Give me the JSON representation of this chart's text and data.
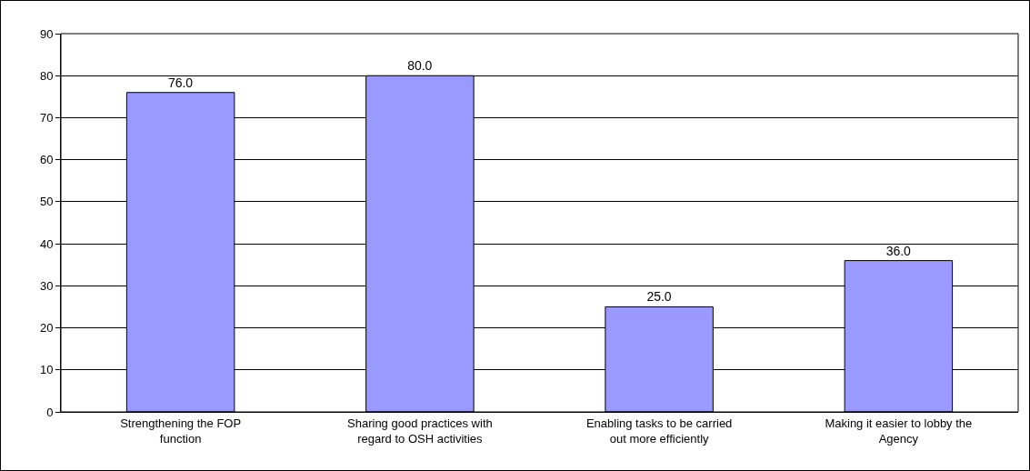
{
  "chart_data": {
    "type": "bar",
    "categories": [
      "Strengthening the FOP function",
      "Sharing good practices with regard to OSH activities",
      "Enabling tasks to be carried out more efficiently",
      "Making it easier to lobby the Agency"
    ],
    "values": [
      76,
      80,
      25,
      36
    ],
    "value_labels": [
      "76.0",
      "80.0",
      "25.0",
      "36.0"
    ],
    "color": "#9999ff",
    "ylim": [
      0,
      90
    ],
    "yticks": [
      0,
      10,
      20,
      30,
      40,
      50,
      60,
      70,
      80,
      90
    ],
    "grid": "y"
  }
}
